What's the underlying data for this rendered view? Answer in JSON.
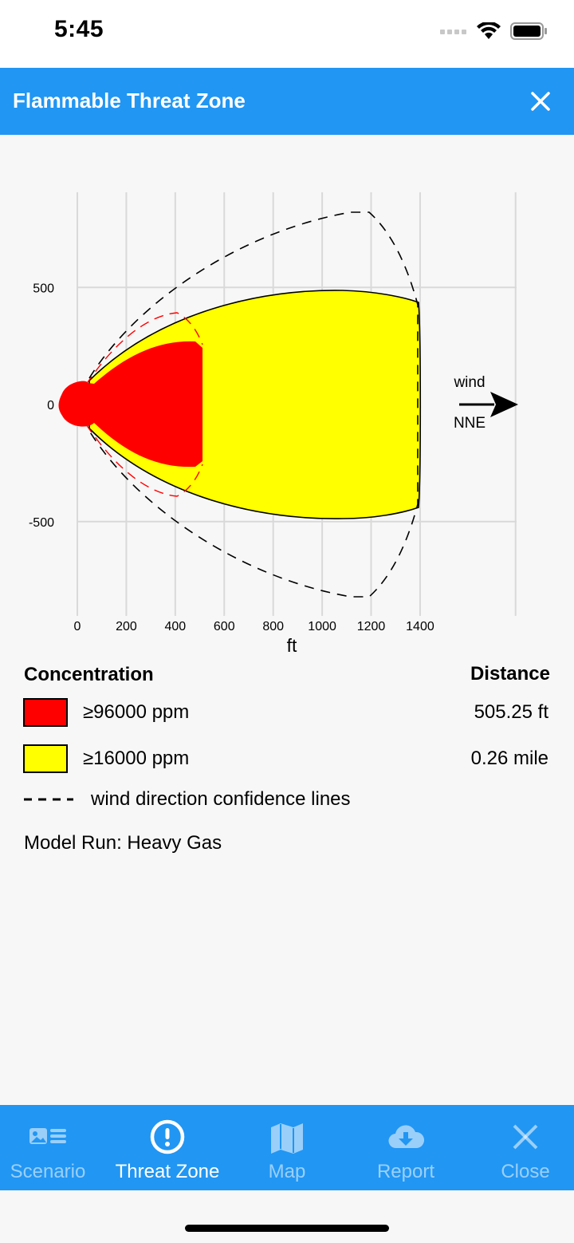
{
  "status": {
    "time": "5:45"
  },
  "header": {
    "title": "Flammable Threat Zone"
  },
  "chart_data": {
    "type": "area",
    "xlabel": "ft",
    "ylabel": "",
    "x_ticks": [
      "0",
      "200",
      "400",
      "600",
      "800",
      "1000",
      "1200",
      "1400"
    ],
    "y_ticks": [
      "500",
      "0",
      "-500"
    ],
    "xlim": [
      -60,
      1800
    ],
    "ylim": [
      -900,
      900
    ],
    "grid": true,
    "zones": [
      {
        "name": "≥96000 ppm",
        "color": "#ff0000",
        "extent_ft": 505
      },
      {
        "name": "≥16000 ppm",
        "color": "#ffff00",
        "extent_ft": 1390
      }
    ],
    "wind": {
      "label_top": "wind",
      "label_bottom": "NNE"
    }
  },
  "legend": {
    "concentration_title": "Concentration",
    "distance_title": "Distance",
    "items": [
      {
        "label": "≥96000 ppm",
        "color": "#ff0000",
        "distance": "505.25 ft"
      },
      {
        "label": "≥16000 ppm",
        "color": "#ffff00",
        "distance": "0.26 mile"
      }
    ],
    "dashed_label": "wind direction confidence lines",
    "model_run": "Model Run: Heavy Gas"
  },
  "tabs": [
    {
      "label": "Scenario",
      "icon": "scenario-icon",
      "active": false
    },
    {
      "label": "Threat Zone",
      "icon": "alert-circle-icon",
      "active": true
    },
    {
      "label": "Map",
      "icon": "map-icon",
      "active": false
    },
    {
      "label": "Report",
      "icon": "cloud-download-icon",
      "active": false
    },
    {
      "label": "Close",
      "icon": "close-icon",
      "active": false
    }
  ],
  "colors": {
    "accent": "#2196f3",
    "red_zone": "#ff0000",
    "yellow_zone": "#ffff00"
  }
}
